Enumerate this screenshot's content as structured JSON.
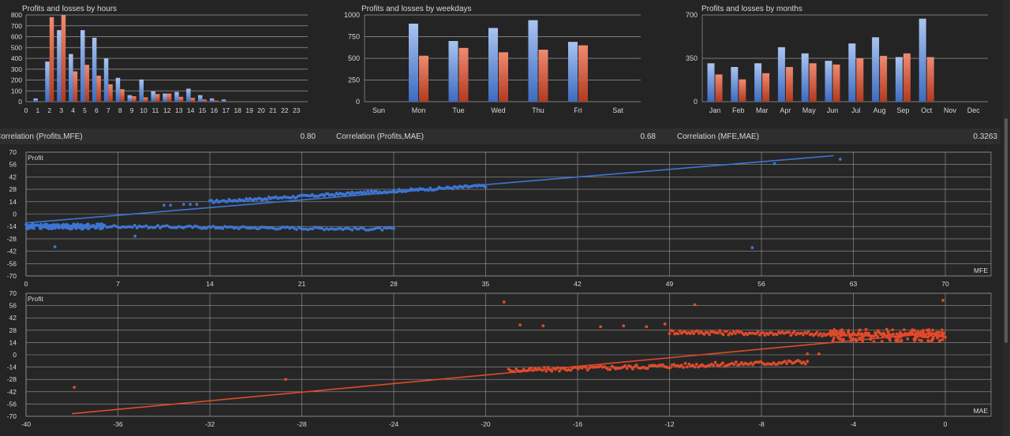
{
  "colors": {
    "background": "#242424",
    "panel": "#2c2c2c",
    "grid": "#b4b4b4",
    "profit": "#5b87d6",
    "loss": "#d65a42",
    "mfe": "#3d75d3",
    "mae": "#e04a2a"
  },
  "chart_data": [
    {
      "type": "bar",
      "title": "Profits and losses by hours",
      "categories": [
        "0",
        "1",
        "2",
        "3",
        "4",
        "5",
        "6",
        "7",
        "8",
        "9",
        "10",
        "11",
        "12",
        "13",
        "14",
        "15",
        "16",
        "17",
        "18",
        "19",
        "20",
        "21",
        "22",
        "23"
      ],
      "series": [
        {
          "values": [
            0,
            30,
            370,
            660,
            440,
            660,
            590,
            400,
            220,
            60,
            205,
            95,
            75,
            90,
            120,
            60,
            30,
            20,
            0,
            0,
            0,
            0,
            0,
            0
          ]
        },
        {
          "values": [
            0,
            0,
            780,
            800,
            280,
            340,
            240,
            160,
            115,
            50,
            40,
            70,
            75,
            45,
            35,
            20,
            10,
            0,
            0,
            0,
            0,
            0,
            0,
            0
          ]
        }
      ],
      "yticks": [
        "0",
        "100",
        "200",
        "300",
        "400",
        "500",
        "600",
        "700",
        "800"
      ],
      "ylim": [
        0,
        800
      ]
    },
    {
      "type": "bar",
      "title": "Profits and losses by weekdays",
      "categories": [
        "Sun",
        "Mon",
        "Tue",
        "Wed",
        "Thu",
        "Fri",
        "Sat"
      ],
      "series": [
        {
          "values": [
            0,
            900,
            700,
            850,
            940,
            690,
            0
          ]
        },
        {
          "values": [
            0,
            530,
            620,
            570,
            600,
            650,
            0
          ]
        }
      ],
      "yticks": [
        "0",
        "250",
        "500",
        "750",
        "1000"
      ],
      "ylim": [
        0,
        1000
      ]
    },
    {
      "type": "bar",
      "title": "Profits and losses by months",
      "categories": [
        "Jan",
        "Feb",
        "Mar",
        "Apr",
        "May",
        "Jun",
        "Jul",
        "Aug",
        "Sep",
        "Oct",
        "Nov",
        "Dec"
      ],
      "series": [
        {
          "values": [
            310,
            280,
            310,
            440,
            390,
            330,
            470,
            520,
            360,
            670,
            0,
            0
          ]
        },
        {
          "values": [
            220,
            180,
            230,
            280,
            310,
            300,
            350,
            370,
            390,
            360,
            0,
            0
          ]
        }
      ],
      "yticks": [
        "0",
        "350",
        "700"
      ],
      "ylim": [
        0,
        700
      ]
    },
    {
      "type": "scatter",
      "ylabel": "Profit",
      "xlabel": "MFE",
      "xlim": [
        0,
        70
      ],
      "ylim": [
        -70,
        70
      ],
      "xticks": [
        "0",
        "7",
        "14",
        "21",
        "28",
        "35",
        "42",
        "49",
        "56",
        "63",
        "70"
      ],
      "yticks": [
        "70",
        "56",
        "42",
        "28",
        "14",
        "0",
        "-14",
        "-28",
        "-42",
        "-56",
        "-70"
      ],
      "points": [
        [
          2.2,
          -37
        ],
        [
          8.3,
          -25
        ],
        [
          10.5,
          10
        ],
        [
          11,
          10
        ],
        [
          12,
          11
        ],
        [
          12.5,
          11
        ],
        [
          13,
          11
        ],
        [
          55.3,
          -38
        ],
        [
          57,
          57
        ],
        [
          62,
          62
        ]
      ],
      "band_upper": {
        "x0": 14,
        "x1": 35,
        "y0": 14,
        "y1": 32
      },
      "band_lower": {
        "x0": 0,
        "x1": 28,
        "y0": -13,
        "y1": -17
      },
      "trend": [
        [
          0,
          -10
        ],
        [
          61.5,
          66
        ]
      ]
    },
    {
      "type": "scatter",
      "ylabel": "Profit",
      "xlabel": "MAE",
      "xlim": [
        -40,
        0
      ],
      "ylim": [
        -70,
        70
      ],
      "xticks": [
        "-40",
        "-36",
        "-32",
        "-28",
        "-24",
        "-20",
        "-16",
        "-12",
        "-8",
        "-4",
        "0"
      ],
      "yticks": [
        "70",
        "56",
        "42",
        "28",
        "14",
        "0",
        "-14",
        "-28",
        "-42",
        "-56",
        "-70"
      ],
      "points": [
        [
          -37.9,
          -37
        ],
        [
          -28.7,
          -28
        ],
        [
          -19.2,
          60
        ],
        [
          -10.9,
          57
        ],
        [
          -0.1,
          62
        ],
        [
          -6,
          1
        ],
        [
          -5.5,
          1
        ],
        [
          -18.5,
          34
        ],
        [
          -17.5,
          33
        ],
        [
          -15,
          32
        ],
        [
          -14,
          33
        ],
        [
          -13,
          32
        ],
        [
          -12.2,
          35
        ]
      ],
      "band_upper": {
        "x0": -12,
        "x1": 0,
        "y0": 26,
        "y1": 22
      },
      "band_lower": {
        "x0": -19,
        "x1": -6,
        "y0": -18,
        "y1": -8
      },
      "trend": [
        [
          -38,
          -67
        ],
        [
          0,
          26
        ]
      ]
    }
  ],
  "correlations": [
    {
      "label": "Correlation (Profits,MFE)",
      "value": "0.80"
    },
    {
      "label": "Correlation (Profits,MAE)",
      "value": "0.68"
    },
    {
      "label": "Correlation (MFE,MAE)",
      "value": "0.3263"
    }
  ]
}
